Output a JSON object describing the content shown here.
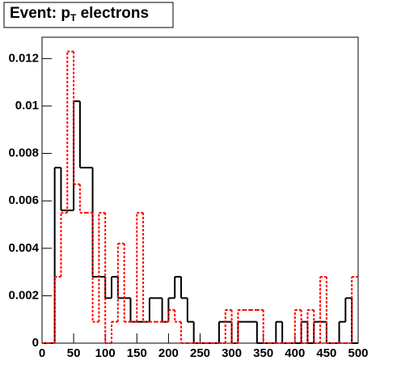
{
  "chart_data": {
    "type": "histogram",
    "title": {
      "main": "Event: p",
      "subscript": "T",
      "suffix": " electrons"
    },
    "bins": [
      0,
      10,
      20,
      30,
      40,
      50,
      60,
      70,
      80,
      90,
      100,
      110,
      120,
      130,
      140,
      150,
      160,
      170,
      180,
      190,
      200,
      210,
      220,
      230,
      240,
      250,
      260,
      270,
      280,
      290,
      300,
      310,
      320,
      330,
      340,
      350,
      360,
      370,
      380,
      390,
      400,
      410,
      420,
      430,
      440,
      450,
      460,
      470,
      480,
      490,
      500
    ],
    "series": [
      {
        "color": "#000000",
        "style": "solid",
        "values": [
          0,
          0,
          0.0074,
          0.0056,
          0.0056,
          0.0102,
          0.0074,
          0.0074,
          0.0028,
          0.0028,
          0.0019,
          0.0028,
          0.0019,
          0.0019,
          0.0009,
          0.0009,
          0.0009,
          0.0019,
          0.0019,
          0.0009,
          0.0019,
          0.0028,
          0.0019,
          0.0009,
          0,
          0,
          0,
          0,
          0.0009,
          0.0009,
          0,
          0.0009,
          0.0009,
          0.0009,
          0,
          0,
          0,
          0.0009,
          0,
          0,
          0,
          0.0009,
          0,
          0.0009,
          0.0009,
          0,
          0,
          0.0009,
          0.0019,
          0
        ]
      },
      {
        "color": "#ff0000",
        "style": "dotted",
        "values": [
          0,
          0,
          0.0028,
          0.0055,
          0.0123,
          0.0067,
          0.0055,
          0.0055,
          0.0009,
          0.0055,
          0,
          0.0009,
          0.0042,
          0.0009,
          0.0009,
          0.0055,
          0.0009,
          0.0009,
          0.0009,
          0.0009,
          0.0014,
          0.0009,
          0,
          0,
          0,
          0,
          0,
          0,
          0,
          0.0014,
          0,
          0.0014,
          0.0014,
          0.0014,
          0.0014,
          0,
          0,
          0,
          0,
          0,
          0.0014,
          0,
          0.0014,
          0,
          0.0028,
          0,
          0,
          0,
          0,
          0.0028
        ]
      }
    ],
    "xlim": [
      0,
      500
    ],
    "ylim": [
      0,
      0.0129
    ],
    "xticks": [
      0,
      50,
      100,
      150,
      200,
      250,
      300,
      350,
      400,
      450,
      500
    ],
    "yticks": [
      0,
      0.002,
      0.004,
      0.006,
      0.008,
      0.01,
      0.012
    ]
  }
}
